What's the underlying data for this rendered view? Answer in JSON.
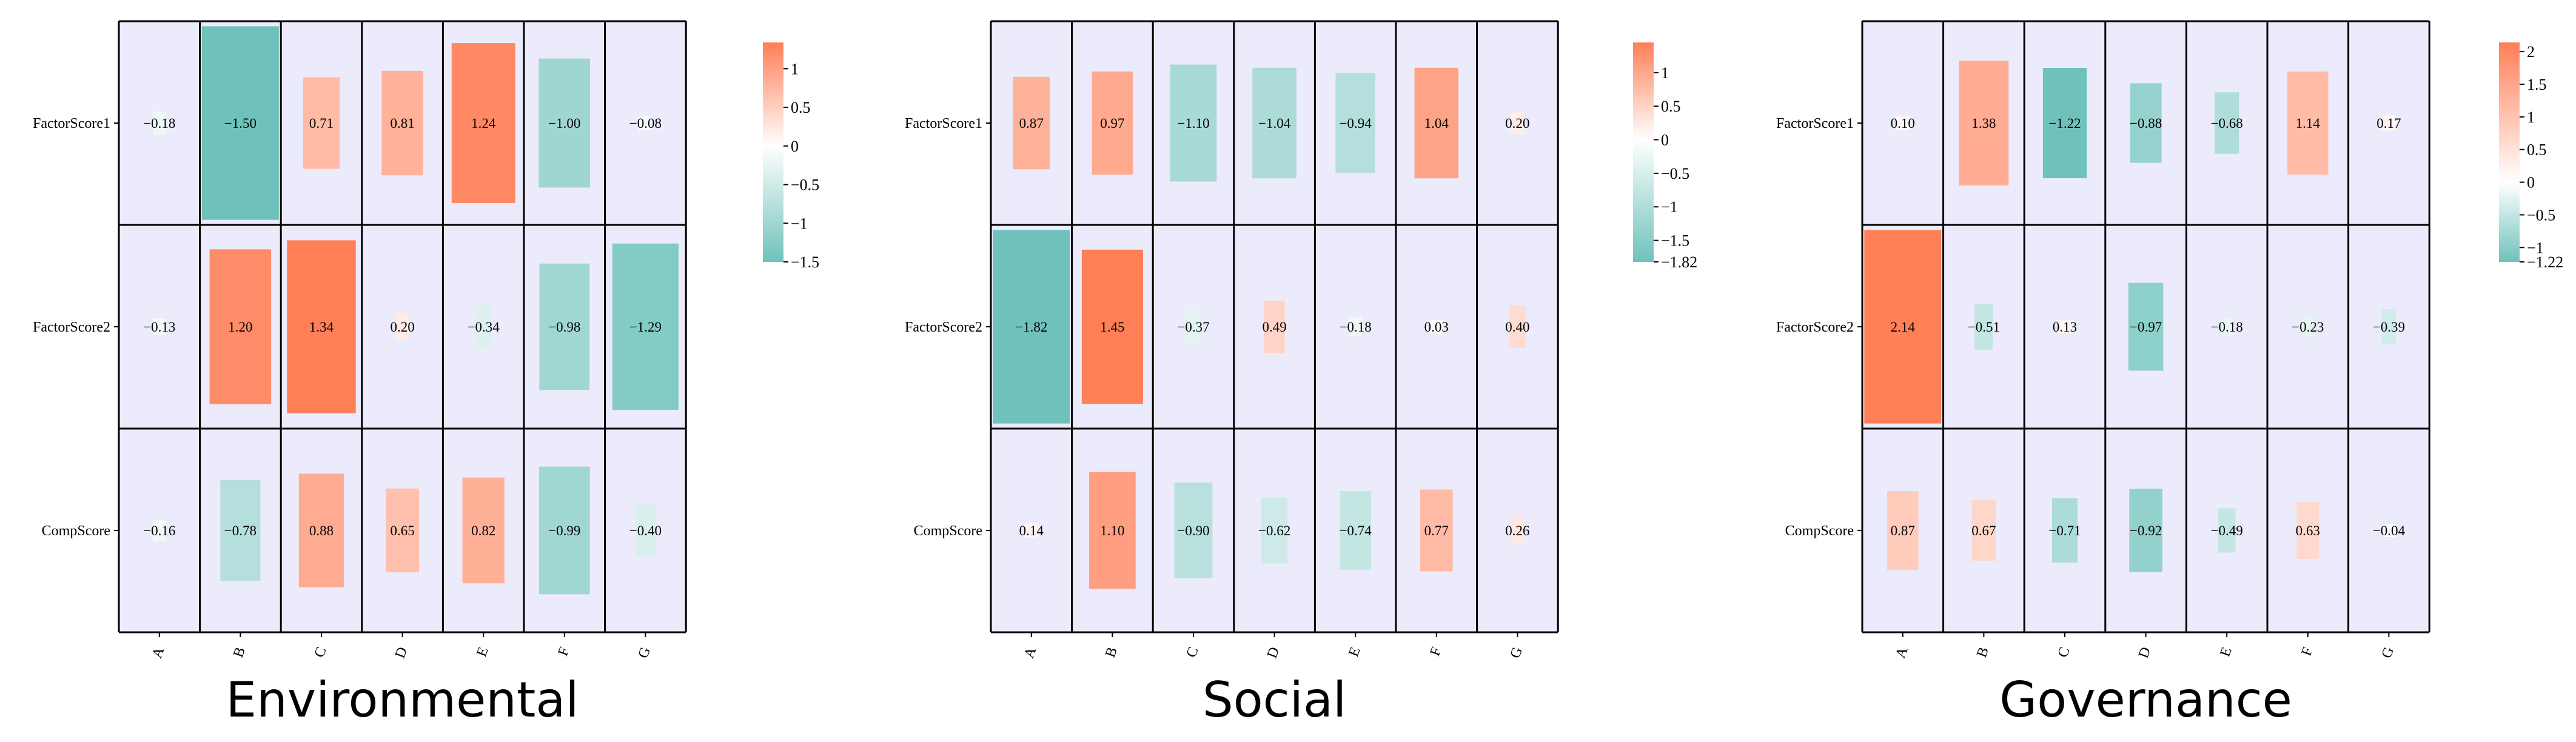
{
  "colors": {
    "panel_bg": "#ebebfb",
    "positive": "#ff7f57",
    "neutral": "#ffffff",
    "negative": "#6fc2bb",
    "grid": "#000000",
    "text": "#000000"
  },
  "chart_data": [
    {
      "type": "heatmap",
      "title": "Environmental",
      "rows": [
        "FactorScore1",
        "FactorScore2",
        "CompScore"
      ],
      "columns": [
        "A",
        "B",
        "C",
        "D",
        "E",
        "F",
        "G"
      ],
      "values": [
        [
          -0.18,
          -1.5,
          0.71,
          0.81,
          1.24,
          -1.0,
          -0.08
        ],
        [
          -0.13,
          1.2,
          1.34,
          0.2,
          -0.34,
          -0.98,
          -1.29
        ],
        [
          -0.16,
          -0.78,
          0.88,
          0.65,
          0.82,
          -0.99,
          -0.4
        ]
      ],
      "labels": [
        [
          "−0.18",
          "−1.50",
          "0.71",
          "0.81",
          "1.24",
          "−1.00",
          "−0.08"
        ],
        [
          "−0.13",
          "1.20",
          "1.34",
          "0.20",
          "−0.34",
          "−0.98",
          "−1.29"
        ],
        [
          "−0.16",
          "−0.78",
          "0.88",
          "0.65",
          "0.82",
          "−0.99",
          "−0.40"
        ]
      ],
      "colorbar": {
        "min": -1.5,
        "max": 1.34,
        "ticks": [
          1,
          0.5,
          0,
          -0.5,
          -1,
          -1.5
        ],
        "tick_labels": [
          "1",
          "0.5",
          "0",
          "−0.5",
          "−1",
          "−1.5"
        ]
      }
    },
    {
      "type": "heatmap",
      "title": "Social",
      "rows": [
        "FactorScore1",
        "FactorScore2",
        "CompScore"
      ],
      "columns": [
        "A",
        "B",
        "C",
        "D",
        "E",
        "F",
        "G"
      ],
      "values": [
        [
          0.87,
          0.97,
          -1.1,
          -1.04,
          -0.94,
          1.04,
          0.2
        ],
        [
          -1.82,
          1.45,
          -0.37,
          0.49,
          -0.18,
          0.03,
          0.4
        ],
        [
          0.14,
          1.1,
          -0.9,
          -0.62,
          -0.74,
          0.77,
          0.26
        ]
      ],
      "labels": [
        [
          "0.87",
          "0.97",
          "−1.10",
          "−1.04",
          "−0.94",
          "1.04",
          "0.20"
        ],
        [
          "−1.82",
          "1.45",
          "−0.37",
          "0.49",
          "−0.18",
          "0.03",
          "0.40"
        ],
        [
          "0.14",
          "1.10",
          "−0.90",
          "−0.62",
          "−0.74",
          "0.77",
          "0.26"
        ]
      ],
      "colorbar": {
        "min": -1.82,
        "max": 1.45,
        "ticks": [
          1,
          0.5,
          0,
          -0.5,
          -1,
          -1.5,
          -1.82
        ],
        "tick_labels": [
          "1",
          "0.5",
          "0",
          "−0.5",
          "−1",
          "−1.5",
          "−1.82"
        ]
      }
    },
    {
      "type": "heatmap",
      "title": "Governance",
      "rows": [
        "FactorScore1",
        "FactorScore2",
        "CompScore"
      ],
      "columns": [
        "A",
        "B",
        "C",
        "D",
        "E",
        "F",
        "G"
      ],
      "values": [
        [
          0.1,
          1.38,
          -1.22,
          -0.88,
          -0.68,
          1.14,
          0.17
        ],
        [
          2.14,
          -0.51,
          0.13,
          -0.97,
          -0.18,
          -0.23,
          -0.39
        ],
        [
          0.87,
          0.67,
          -0.71,
          -0.92,
          -0.49,
          0.63,
          -0.04
        ]
      ],
      "labels": [
        [
          "0.10",
          "1.38",
          "−1.22",
          "−0.88",
          "−0.68",
          "1.14",
          "0.17"
        ],
        [
          "2.14",
          "−0.51",
          "0.13",
          "−0.97",
          "−0.18",
          "−0.23",
          "−0.39"
        ],
        [
          "0.87",
          "0.67",
          "−0.71",
          "−0.92",
          "−0.49",
          "0.63",
          "−0.04"
        ]
      ],
      "colorbar": {
        "min": -1.22,
        "max": 2.14,
        "ticks": [
          2,
          1.5,
          1,
          0.5,
          0,
          -0.5,
          -1,
          -1.22
        ],
        "tick_labels": [
          "2",
          "1.5",
          "1",
          "0.5",
          "0",
          "−0.5",
          "−1",
          "−1.22"
        ]
      }
    }
  ]
}
